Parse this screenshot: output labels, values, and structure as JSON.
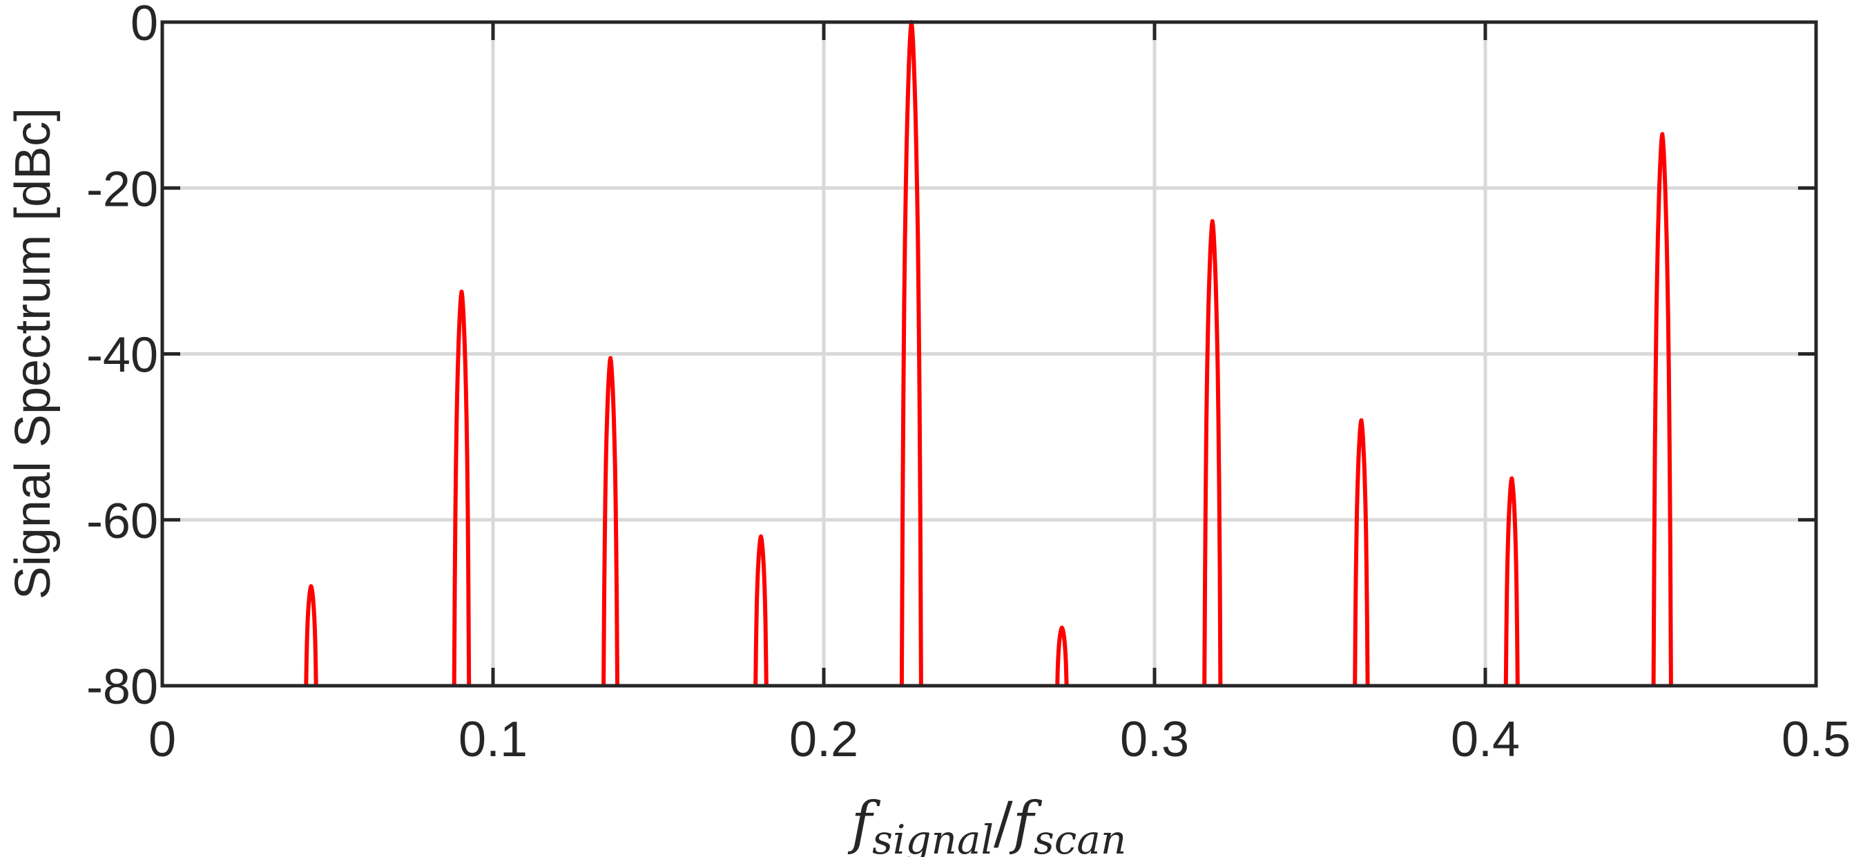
{
  "chart_data": {
    "type": "line",
    "title": "",
    "xlabel": {
      "main": "f",
      "main_sub": "signal",
      "separator": "/",
      "denom": "f",
      "denom_sub": "scan"
    },
    "ylabel": "Signal Spectrum [dBc]",
    "xlim": [
      0,
      0.5
    ],
    "ylim": [
      -80,
      0
    ],
    "xticks": [
      0,
      0.1,
      0.2,
      0.3,
      0.4,
      0.5
    ],
    "xtick_labels": [
      "0",
      "0.1",
      "0.2",
      "0.3",
      "0.4",
      "0.5"
    ],
    "yticks": [
      0,
      -20,
      -40,
      -60,
      -80
    ],
    "ytick_labels": [
      "0",
      "-20",
      "-40",
      "-60",
      "-80"
    ],
    "grid": true,
    "legend": "none",
    "series": [
      {
        "color": "#ff0000",
        "peaks": [
          {
            "x": 0.045,
            "y": -68
          },
          {
            "x": 0.0905,
            "y": -32.5
          },
          {
            "x": 0.1355,
            "y": -40.5
          },
          {
            "x": 0.181,
            "y": -62
          },
          {
            "x": 0.2265,
            "y": 0
          },
          {
            "x": 0.272,
            "y": -73
          },
          {
            "x": 0.3175,
            "y": -24
          },
          {
            "x": 0.3625,
            "y": -48
          },
          {
            "x": 0.408,
            "y": -55
          },
          {
            "x": 0.4535,
            "y": -13.5
          }
        ]
      }
    ]
  }
}
